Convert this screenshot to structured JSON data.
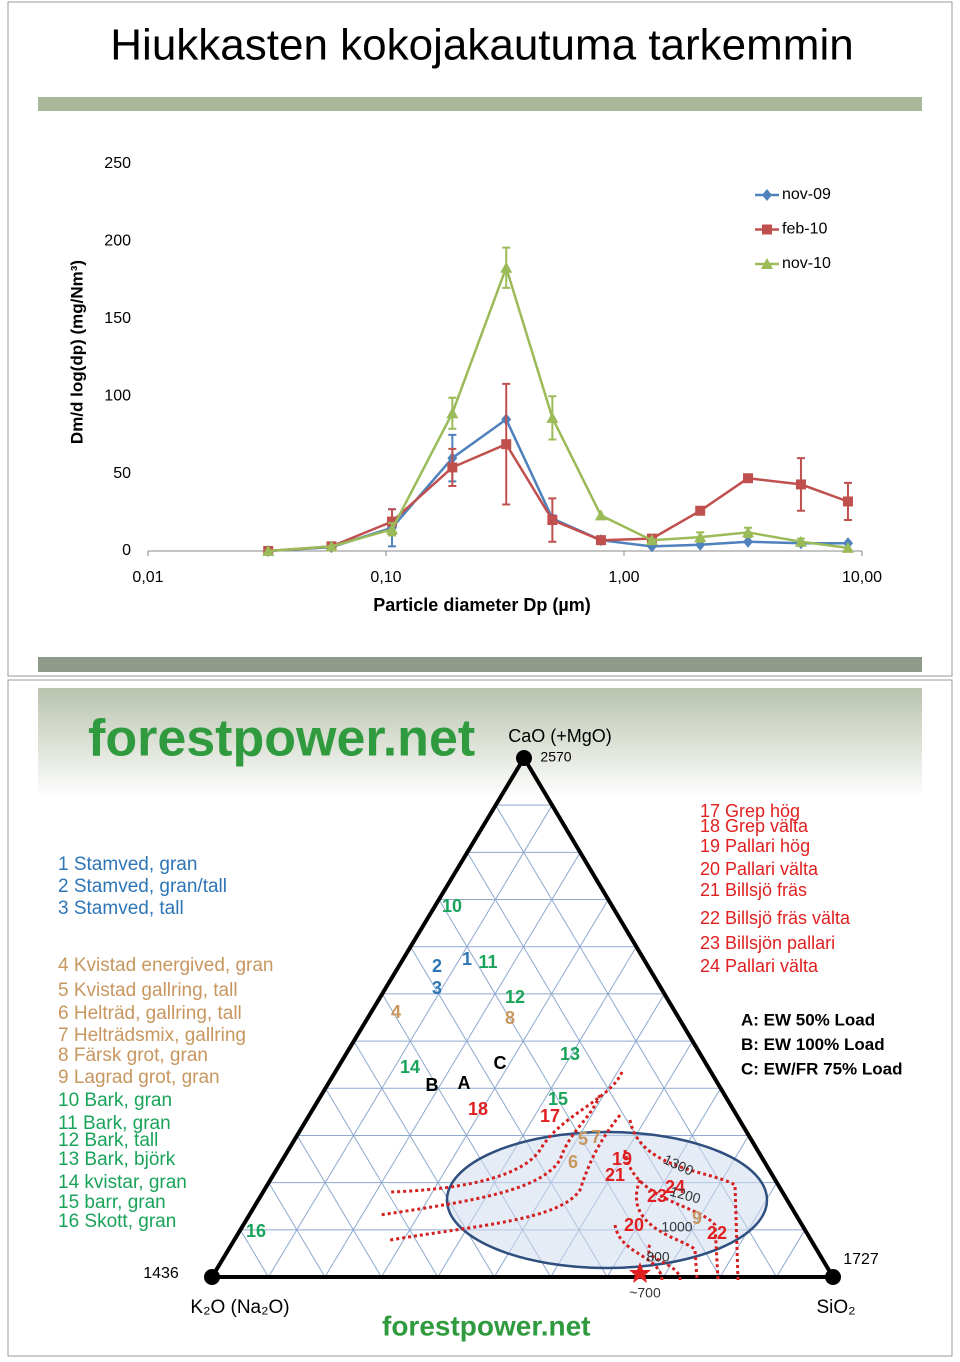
{
  "chart_data": {
    "type": "line",
    "title": "Hiukkasten kokojakautuma tarkemmin",
    "x_label": "Particle diameter Dp (µm)",
    "y_label": "Dm/d log(dp) (mg/Nm³)",
    "log_x": true,
    "x": [
      0.032,
      0.059,
      0.106,
      0.19,
      0.32,
      0.5,
      0.8,
      1.31,
      2.09,
      3.32,
      5.54,
      8.73
    ],
    "series": [
      {
        "name": "nov-09",
        "color": "#4f81bd",
        "marker": "diamond",
        "values": [
          0,
          2.5,
          15,
          60,
          85,
          21,
          7,
          3,
          4,
          6,
          5,
          5
        ],
        "errors": [
          0,
          0,
          12,
          15,
          0,
          2,
          0,
          0,
          0,
          0,
          0,
          0
        ]
      },
      {
        "name": "feb-10",
        "color": "#c0504d",
        "marker": "square",
        "values": [
          0,
          3,
          19,
          54,
          69,
          20,
          7,
          8,
          26,
          47,
          43,
          32
        ],
        "errors": [
          0,
          0,
          8,
          12,
          39,
          14,
          0,
          0,
          2,
          0,
          17,
          12
        ]
      },
      {
        "name": "nov-10",
        "color": "#9bbb59",
        "marker": "triangle",
        "values": [
          0,
          3,
          14,
          89,
          183,
          86,
          23,
          7,
          9,
          12,
          6,
          2
        ],
        "errors": [
          0,
          0,
          4,
          10,
          13,
          14,
          0,
          0,
          3,
          3,
          2,
          0
        ]
      }
    ],
    "xlim": [
      0.01,
      10
    ],
    "xticks": [
      {
        "value": 0.01,
        "label": "0,01"
      },
      {
        "value": 0.1,
        "label": "0,10"
      },
      {
        "value": 1,
        "label": "1,00"
      },
      {
        "value": 10,
        "label": "10,00"
      }
    ],
    "ylim": [
      0,
      250
    ],
    "yticks": [
      0,
      50,
      100,
      150,
      200,
      250
    ],
    "grid": false,
    "legend": "upper right"
  },
  "diagram": {
    "logo": "forestpower.net",
    "footer_logo": "forestpower.net",
    "vertices": [
      {
        "label": "CaO (+MgO)",
        "temperature": "2570"
      },
      {
        "label": "K₂O (Na₂O)",
        "temperature": "1436"
      },
      {
        "label": "SiO₂",
        "temperature": "1727"
      }
    ],
    "legend_left": [
      {
        "text": "1 Stamved, gran",
        "color": "#2e75b6"
      },
      {
        "text": "2 Stamved, gran/tall",
        "color": "#2e75b6"
      },
      {
        "text": "3 Stamved, tall",
        "color": "#2e75b6"
      },
      {
        "text": "4 Kvistad energived, gran",
        "color": "#c8965f"
      },
      {
        "text": "5 Kvistad gallring, tall",
        "color": "#c8965f"
      },
      {
        "text": "6 Helträd, gallring, tall",
        "color": "#c8965f"
      },
      {
        "text": "7 Helträdsmix, gallring",
        "color": "#c8965f"
      },
      {
        "text": "8 Färsk grot, gran",
        "color": "#c8965f"
      },
      {
        "text": "9 Lagrad grot, gran",
        "color": "#c8965f"
      },
      {
        "text": "10 Bark, gran",
        "color": "#1aa35a"
      },
      {
        "text": "11 Bark, gran",
        "color": "#1aa35a"
      },
      {
        "text": "12 Bark, tall",
        "color": "#1aa35a"
      },
      {
        "text": "13 Bark, björk",
        "color": "#1aa35a"
      },
      {
        "text": "14 kvistar, gran",
        "color": "#1aa35a"
      },
      {
        "text": "15 barr, gran",
        "color": "#1aa35a"
      },
      {
        "text": "16 Skott, gran",
        "color": "#1aa35a"
      }
    ],
    "legend_right": [
      "17 Grep hög",
      "18 Grep välta",
      "19 Pallari hög",
      "20 Pallari välta",
      "21 Billsjö fräs",
      "22 Billsjö fräs välta",
      "23 Billsjön pallari",
      "24 Pallari välta"
    ],
    "legend_right_color": "#e02020",
    "loads": [
      "A: EW 50% Load",
      "B: EW 100% Load",
      "C: EW/FR 75% Load"
    ],
    "points": [
      {
        "label": "10",
        "color": "#1aa35a"
      },
      {
        "label": "2",
        "color": "#2e75b6"
      },
      {
        "label": "1",
        "color": "#2e75b6"
      },
      {
        "label": "11",
        "color": "#1aa35a"
      },
      {
        "label": "3",
        "color": "#2e75b6"
      },
      {
        "label": "12",
        "color": "#1aa35a"
      },
      {
        "label": "8",
        "color": "#c8965f"
      },
      {
        "label": "4",
        "color": "#c8965f"
      },
      {
        "label": "14",
        "color": "#1aa35a"
      },
      {
        "label": "13",
        "color": "#1aa35a"
      },
      {
        "label": "C",
        "color": "#000000"
      },
      {
        "label": "B",
        "color": "#000000"
      },
      {
        "label": "A",
        "color": "#000000"
      },
      {
        "label": "18",
        "color": "#e02020"
      },
      {
        "label": "15",
        "color": "#1aa35a"
      },
      {
        "label": "17",
        "color": "#e02020"
      },
      {
        "label": "5",
        "color": "#c8965f"
      },
      {
        "label": "7",
        "color": "#c8965f"
      },
      {
        "label": "6",
        "color": "#c8965f"
      },
      {
        "label": "19",
        "color": "#e02020"
      },
      {
        "label": "21",
        "color": "#e02020"
      },
      {
        "label": "23",
        "color": "#e02020"
      },
      {
        "label": "24",
        "color": "#e02020"
      },
      {
        "label": "20",
        "color": "#e02020"
      },
      {
        "label": "9",
        "color": "#c8965f"
      },
      {
        "label": "22",
        "color": "#e02020"
      },
      {
        "label": "16",
        "color": "#1aa35a"
      }
    ],
    "isotherms": [
      "1300",
      "1200",
      "1000",
      "800",
      "~700"
    ]
  }
}
